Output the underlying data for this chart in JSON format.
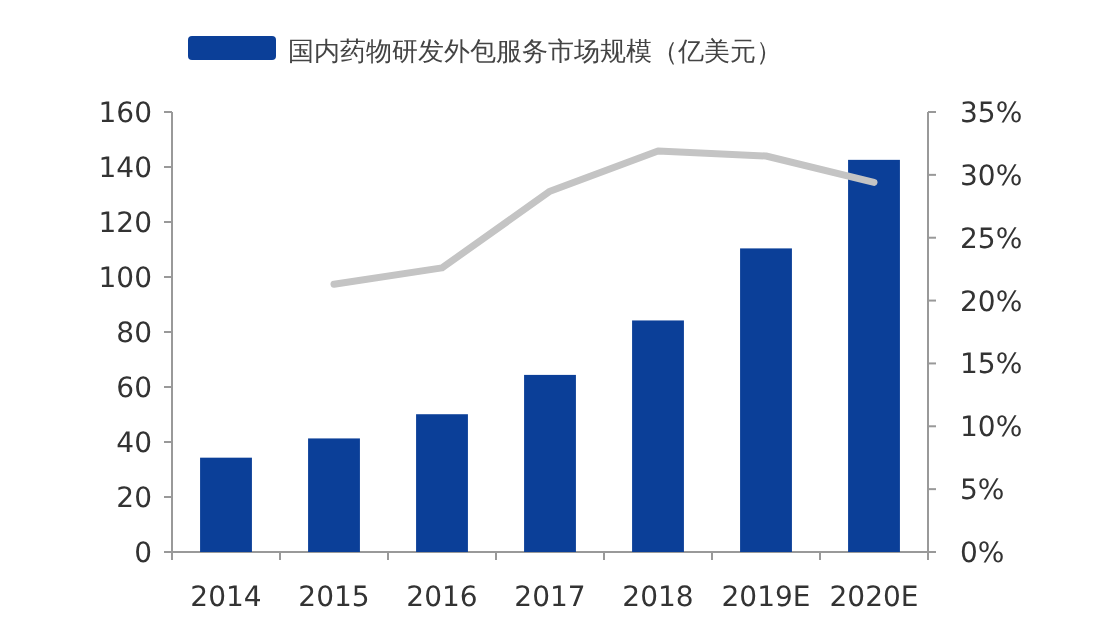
{
  "chart_data": {
    "type": "bar",
    "categories": [
      "2014",
      "2015",
      "2016",
      "2017",
      "2018",
      "2019E",
      "2020E"
    ],
    "series": [
      {
        "name": "国内药物研发外包服务市场规模（亿美元）",
        "color": "#0b3f98",
        "values": [
          34.3,
          41.3,
          50.1,
          64.4,
          84.2,
          110.4,
          142.6
        ]
      },
      {
        "type": "line",
        "axis": "y2",
        "color": "#c4c4c4",
        "values": [
          null,
          21.3,
          22.6,
          28.7,
          31.9,
          31.5,
          29.4
        ]
      }
    ],
    "ylim": [
      0,
      160
    ],
    "yticks": [
      0,
      20,
      40,
      60,
      80,
      100,
      120,
      140,
      160
    ],
    "y2lim": [
      0,
      35
    ],
    "y2ticks": [
      {
        "value": 0,
        "label": "0%"
      },
      {
        "value": 5,
        "label": "5%"
      },
      {
        "value": 10,
        "label": "10%"
      },
      {
        "value": 15,
        "label": "15%"
      },
      {
        "value": 20,
        "label": "20%"
      },
      {
        "value": 25,
        "label": "25%"
      },
      {
        "value": 30,
        "label": "30%"
      },
      {
        "value": 35,
        "label": "35%"
      }
    ],
    "legend": "top",
    "grid": false
  }
}
